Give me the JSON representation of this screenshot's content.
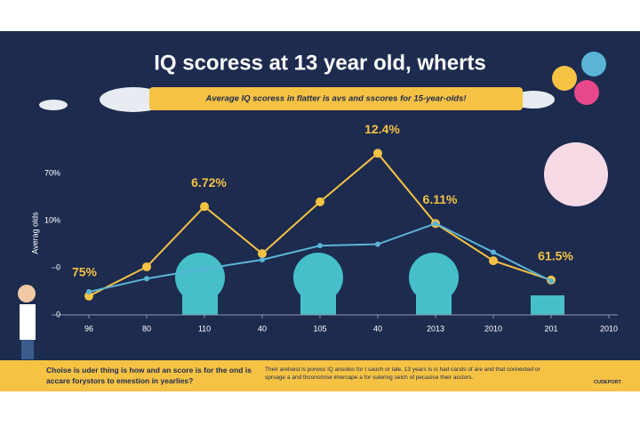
{
  "chart_data": {
    "type": "line",
    "title": "IQ scoress at 13 year old, wherts",
    "subtitle": "Average IQ scoress in flatter is avs and sscores for 15-year-olds!",
    "y_label": "Averag olds",
    "categories": [
      "96",
      "80",
      "110",
      "40",
      "105",
      "40",
      "2013",
      "2010",
      "201",
      "2010"
    ],
    "series": [
      {
        "color": "#f5c244",
        "values": [
          0.4,
          1.02,
          2.3,
          1.3,
          2.4,
          3.43,
          1.94,
          1.15,
          0.74,
          null
        ]
      },
      {
        "color": "#5ab4d6",
        "values": [
          0.49,
          0.77,
          0.98,
          1.17,
          1.47,
          1.5,
          1.94,
          1.33,
          0.72,
          null
        ]
      }
    ],
    "annotations": [
      {
        "text": "75%",
        "index": 0
      },
      {
        "text": "6.72%",
        "index": 2
      },
      {
        "text": "12.4%",
        "index": 5
      },
      {
        "text": "6.11%",
        "index": 6
      },
      {
        "text": "61.5%",
        "index": 8
      }
    ],
    "ylim": [
      0,
      3.7
    ],
    "yticks": [
      0,
      {
        "value": 1,
        "label": "0"
      },
      {
        "value": 2,
        "label": "10%"
      },
      {
        "value": 3,
        "label": "70%"
      }
    ],
    "footer_left": "Choise is uder thing is how and an score is for the ond is accare forystors to emestion in yearlies?",
    "footer_right": "Their arelsest is porwss IQ ansoles for t sauch or tale. 13 years is is had cands of are and that connected or sprsage a and thconsmise imercape a for sulering seich of pecasice their acctors.",
    "logo": "CUDEPORT"
  }
}
